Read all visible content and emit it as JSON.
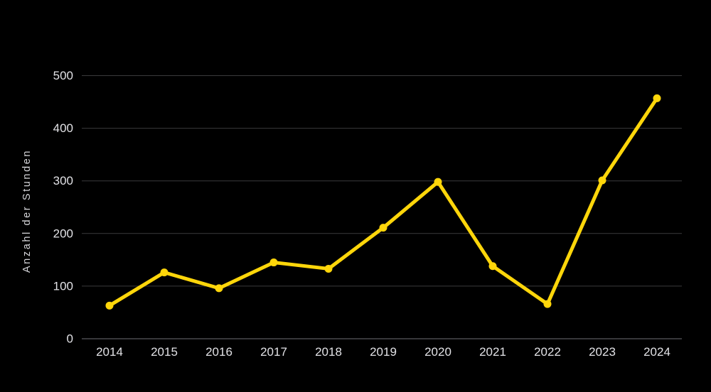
{
  "chart_data": {
    "type": "line",
    "categories": [
      "2014",
      "2015",
      "2016",
      "2017",
      "2018",
      "2019",
      "2020",
      "2021",
      "2022",
      "2023",
      "2024"
    ],
    "values": [
      63,
      126,
      96,
      145,
      133,
      211,
      298,
      138,
      66,
      301,
      457
    ],
    "title": "",
    "xlabel": "",
    "ylabel": "Anzahl der Stunden",
    "yticks": [
      0,
      100,
      200,
      300,
      400,
      500
    ],
    "ylim": [
      0,
      500
    ],
    "grid": "horizontal",
    "legend": "none",
    "marker": "circle"
  },
  "style": {
    "background_color": "#000000",
    "line_color": "#FFD60A",
    "point_color": "#FFD60A",
    "grid_color": "#3a3a3c",
    "zero_line_color": "#6e6e73",
    "tick_label_color": "#e2e2e6",
    "axis_title_color": "#d6d6da"
  }
}
